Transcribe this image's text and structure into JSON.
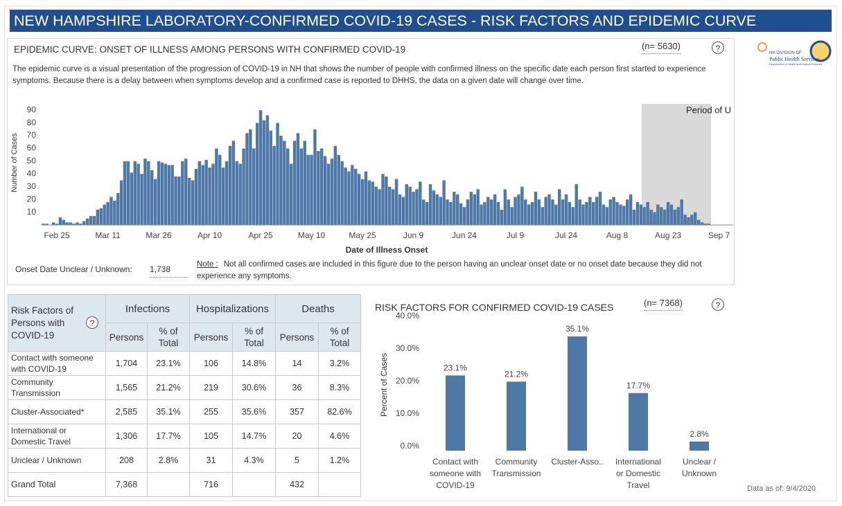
{
  "header": {
    "title": "NEW HAMPSHIRE LABORATORY-CONFIRMED COVID-19 CASES - RISK FACTORS AND EPIDEMIC CURVE"
  },
  "help_icon": "?",
  "logo": {
    "line1": "NH DIVISION OF",
    "line2": "Public Health Services",
    "line3": "Department of Health and Human Services"
  },
  "epi_panel": {
    "description": "The epidemic curve is a visual presentation of the progression of COVID-19 in NH that shows the number of people with confirmed illness on the specific date each person first started to experience symptoms. Because there is a delay between when symptoms develop and a confirmed case is reported to DHHS, the data on a given date will change over time.",
    "unknown_label": "Onset Date Unclear / Unknown:",
    "unknown_value": "1,738",
    "note_label": "Note :",
    "note_text": "Not all confirmed cases are included in this figure due to the person having an unclear onset date or no onset date because they did not experience any symptoms."
  },
  "table": {
    "corner": "Risk Factors of Persons with COVID-19",
    "groups": [
      "Infections",
      "Hospitalizations",
      "Deaths"
    ],
    "subheaders": [
      "Persons",
      "% of Total",
      "Persons",
      "% of Total",
      "Persons",
      "% of Total"
    ],
    "rows": [
      [
        "Contact with someone with COVID-19",
        "1,704",
        "23.1%",
        "106",
        "14.8%",
        "14",
        "3.2%"
      ],
      [
        "Community Transmission",
        "1,565",
        "21.2%",
        "219",
        "30.6%",
        "36",
        "8.3%"
      ],
      [
        "Cluster-Associated*",
        "2,585",
        "35.1%",
        "255",
        "35.6%",
        "357",
        "82.6%"
      ],
      [
        "International or Domestic Travel",
        "1,306",
        "17.7%",
        "105",
        "14.7%",
        "20",
        "4.6%"
      ],
      [
        "Unclear / Unknown",
        "208",
        "2.8%",
        "31",
        "4.3%",
        "5",
        "1.2%"
      ]
    ],
    "total": [
      "Grand Total",
      "7,368",
      null,
      "716",
      null,
      "432",
      null
    ]
  },
  "data_as_of": {
    "label": "Data as of:",
    "value": "9/4/2020"
  },
  "chart_data": [
    {
      "type": "bar",
      "title": "EPIDEMIC CURVE: ONSET OF ILLNESS AMONG PERSONS WITH CONFIRMED COVID-19",
      "n_label": "(n= 5630)",
      "xlabel": "Date of Illness Onset",
      "ylabel": "Number of Cases",
      "annotation": "Period of U",
      "color": "#4e79a7",
      "ylim": [
        0,
        95
      ],
      "yticks": [
        10,
        20,
        30,
        40,
        50,
        60,
        70,
        80,
        90
      ],
      "categories": [
        null,
        null,
        null,
        null,
        "Feb 25",
        null,
        null,
        null,
        null,
        null,
        null,
        null,
        null,
        null,
        null,
        null,
        null,
        null,
        null,
        "Mar 11",
        null,
        null,
        null,
        null,
        null,
        null,
        null,
        null,
        null,
        null,
        null,
        null,
        null,
        null,
        "Mar 26",
        null,
        null,
        null,
        null,
        null,
        null,
        null,
        null,
        null,
        null,
        null,
        null,
        null,
        null,
        "Apr 10",
        null,
        null,
        null,
        null,
        null,
        null,
        null,
        null,
        null,
        null,
        null,
        null,
        null,
        null,
        "Apr 25",
        null,
        null,
        null,
        null,
        null,
        null,
        null,
        null,
        null,
        null,
        null,
        null,
        null,
        null,
        "May 10",
        null,
        null,
        null,
        null,
        null,
        null,
        null,
        null,
        null,
        null,
        null,
        null,
        null,
        null,
        "May 25",
        null,
        null,
        null,
        null,
        null,
        null,
        null,
        null,
        null,
        null,
        null,
        null,
        null,
        null,
        "Jun 9",
        null,
        null,
        null,
        null,
        null,
        null,
        null,
        null,
        null,
        null,
        null,
        null,
        null,
        null,
        "Jun 24",
        null,
        null,
        null,
        null,
        null,
        null,
        null,
        null,
        null,
        null,
        null,
        null,
        null,
        null,
        "Jul 9",
        null,
        null,
        null,
        null,
        null,
        null,
        null,
        null,
        null,
        null,
        null,
        null,
        null,
        null,
        "Jul 24",
        null,
        null,
        null,
        null,
        null,
        null,
        null,
        null,
        null,
        null,
        null,
        null,
        null,
        null,
        "Aug 8",
        null,
        null,
        null,
        null,
        null,
        null,
        null,
        null,
        null,
        null,
        null,
        null,
        null,
        null,
        "Aug 23",
        null,
        null,
        null,
        null,
        null,
        null,
        null,
        null,
        null,
        null,
        null,
        null,
        null,
        null,
        "Sep 7"
      ],
      "values": [
        1,
        1,
        0,
        2,
        1,
        6,
        4,
        2,
        2,
        1,
        2,
        1,
        3,
        5,
        7,
        7,
        12,
        13,
        16,
        18,
        22,
        19,
        25,
        35,
        50,
        50,
        41,
        50,
        48,
        40,
        52,
        50,
        43,
        36,
        50,
        49,
        48,
        47,
        47,
        38,
        38,
        50,
        52,
        37,
        35,
        44,
        50,
        47,
        51,
        45,
        48,
        60,
        55,
        45,
        50,
        62,
        66,
        50,
        48,
        60,
        72,
        75,
        60,
        80,
        90,
        82,
        86,
        74,
        62,
        80,
        70,
        66,
        60,
        48,
        66,
        72,
        60,
        66,
        55,
        55,
        75,
        58,
        60,
        54,
        48,
        52,
        62,
        55,
        50,
        45,
        42,
        47,
        44,
        40,
        36,
        42,
        35,
        34,
        30,
        28,
        40,
        38,
        30,
        28,
        36,
        24,
        22,
        32,
        30,
        26,
        28,
        34,
        20,
        18,
        32,
        27,
        24,
        22,
        35,
        20,
        18,
        26,
        24,
        17,
        14,
        20,
        26,
        24,
        28,
        16,
        18,
        22,
        20,
        24,
        18,
        12,
        28,
        20,
        14,
        22,
        24,
        30,
        20,
        16,
        18,
        26,
        20,
        14,
        22,
        24,
        20,
        16,
        28,
        20,
        24,
        18,
        14,
        32,
        20,
        16,
        18,
        22,
        18,
        22,
        26,
        16,
        14,
        20,
        22,
        18,
        16,
        15,
        20,
        24,
        12,
        18,
        16,
        14,
        18,
        12,
        10,
        16,
        14,
        12,
        18,
        16,
        12,
        14,
        20,
        8,
        6,
        8,
        10,
        4,
        2,
        1,
        1,
        null,
        null,
        null
      ]
    },
    {
      "type": "bar",
      "title": "RISK FACTORS FOR CONFIRMED COVID-19 CASES",
      "n_label": "(n= 7368)",
      "ylabel": "Percent of Cases",
      "color": "#4e79a7",
      "categories": [
        [
          "Contact with",
          "someone with",
          "COVID-19"
        ],
        [
          "Community",
          "Transmission"
        ],
        [
          "Cluster-Asso.."
        ],
        [
          "International",
          "or Domestic",
          "Travel"
        ],
        [
          "Unclear /",
          "Unknown"
        ]
      ],
      "values": [
        23.1,
        21.2,
        35.1,
        17.7,
        2.8
      ],
      "value_labels": [
        "23.1%",
        "21.2%",
        "35.1%",
        "17.7%",
        "2.8%"
      ],
      "ylim": [
        0,
        40
      ],
      "yticks": [
        {
          "value": 0,
          "label": "0.0%"
        },
        {
          "value": 10,
          "label": "10.0%"
        },
        {
          "value": 20,
          "label": "20.0%"
        },
        {
          "value": 30,
          "label": "30.0%"
        },
        {
          "value": 40,
          "label": "40.0%"
        }
      ]
    }
  ]
}
